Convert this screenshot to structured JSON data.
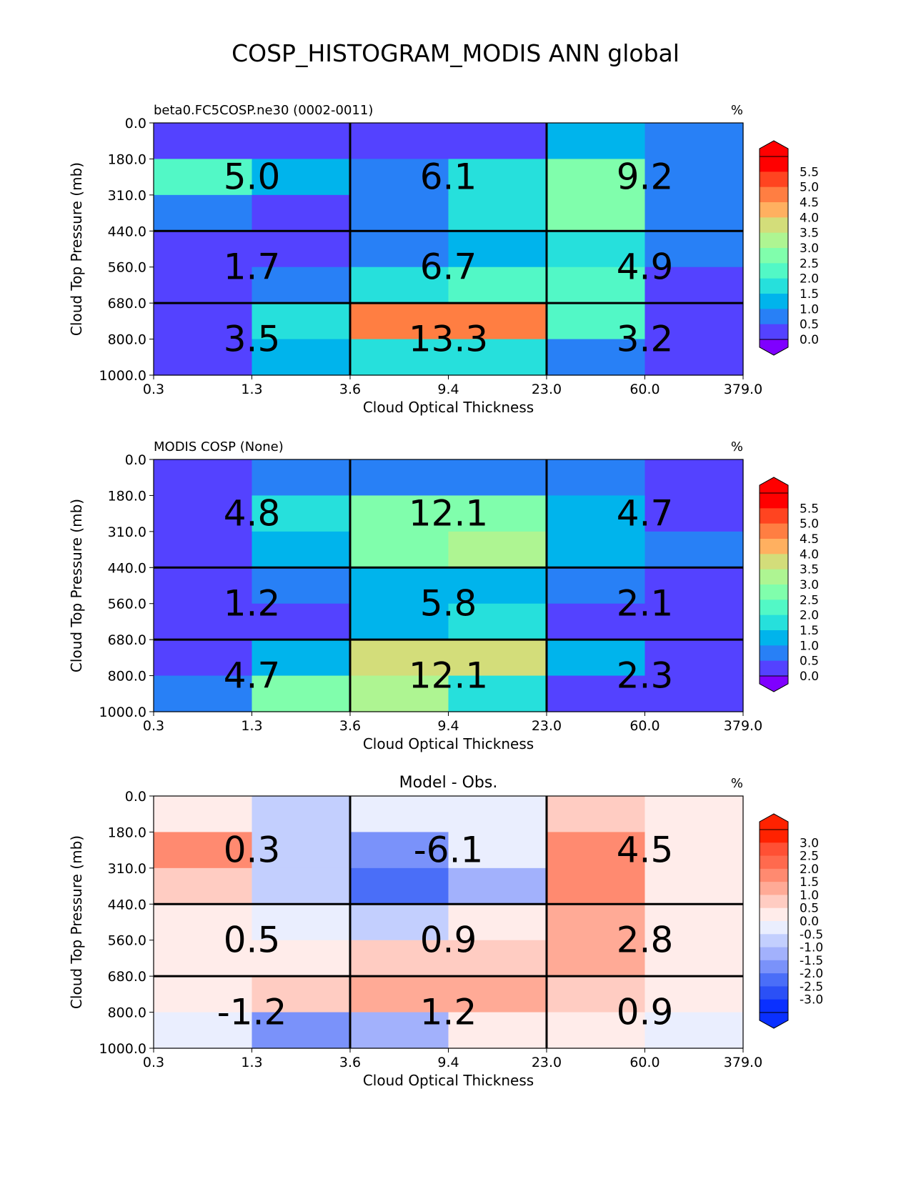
{
  "title": "COSP_HISTOGRAM_MODIS ANN global",
  "chart_data": [
    {
      "type": "heatmap",
      "name": "test",
      "left_title": "beta0.FC5COSP.ne30 (0002-0011)",
      "center_title": "",
      "units": "%",
      "xlabel": "Cloud Optical Thickness",
      "ylabel": "Cloud Top Pressure (mb)",
      "x_ticks": [
        "0.3",
        "1.3",
        "3.6",
        "9.4",
        "23.0",
        "60.0",
        "379.0"
      ],
      "y_ticks": [
        "0.0",
        "180.0",
        "310.0",
        "440.0",
        "560.0",
        "680.0",
        "800.0",
        "1000.0"
      ],
      "rows": [
        [
          0.3,
          0.3,
          0.4,
          0.4,
          1.3,
          0.7
        ],
        [
          2.2,
          1.4,
          0.8,
          1.8,
          2.7,
          0.8
        ],
        [
          0.8,
          0.3,
          0.8,
          1.8,
          2.6,
          0.8
        ],
        [
          0.3,
          0.4,
          0.8,
          1.2,
          1.8,
          0.8
        ],
        [
          0.3,
          0.7,
          1.7,
          2.2,
          2.1,
          0.3
        ],
        [
          0.3,
          1.9,
          4.8,
          4.8,
          2.3,
          0.2
        ],
        [
          0.3,
          1.4,
          1.8,
          1.8,
          0.8,
          0.2
        ]
      ],
      "block_labels": [
        "5.0",
        "6.1",
        "9.2",
        "1.7",
        "6.7",
        "4.9",
        "3.5",
        "13.3",
        "3.2"
      ],
      "colorbar_ticks": [
        "5.5",
        "5.0",
        "4.5",
        "4.0",
        "3.5",
        "3.0",
        "2.5",
        "2.0",
        "1.5",
        "1.0",
        "0.5",
        "0.0"
      ],
      "colorbar_colors": [
        "#ff0000",
        "#ff4420",
        "#ff7e42",
        "#ffb060",
        "#d3dd7a",
        "#aef592",
        "#80feac",
        "#52f8c6",
        "#26e0dc",
        "#00b4ec",
        "#2880f6",
        "#5442ff"
      ],
      "colorbar_min_color": "#7f00ff",
      "colorbar_max_color": "#ff0000"
    },
    {
      "type": "heatmap",
      "name": "reference",
      "left_title": "MODIS COSP (None)",
      "center_title": "",
      "units": "%",
      "xlabel": "Cloud Optical Thickness",
      "ylabel": "Cloud Top Pressure (mb)",
      "x_ticks": [
        "0.3",
        "1.3",
        "3.6",
        "9.4",
        "23.0",
        "60.0",
        "379.0"
      ],
      "y_ticks": [
        "0.0",
        "180.0",
        "310.0",
        "440.0",
        "560.0",
        "680.0",
        "800.0",
        "1000.0"
      ],
      "rows": [
        [
          0.3,
          0.8,
          0.8,
          0.8,
          0.8,
          0.3
        ],
        [
          0.3,
          1.8,
          2.7,
          2.7,
          1.3,
          0.3
        ],
        [
          0.3,
          1.4,
          2.7,
          3.1,
          1.3,
          0.8
        ],
        [
          0.3,
          0.8,
          1.3,
          1.3,
          0.8,
          0.3
        ],
        [
          0.3,
          0.3,
          1.3,
          1.8,
          0.3,
          0.3
        ],
        [
          0.3,
          1.4,
          3.8,
          3.8,
          1.4,
          0.3
        ],
        [
          0.8,
          2.7,
          3.1,
          1.8,
          0.3,
          0.3
        ]
      ],
      "block_labels": [
        "4.8",
        "12.1",
        "4.7",
        "1.2",
        "5.8",
        "2.1",
        "4.7",
        "12.1",
        "2.3"
      ],
      "colorbar_ticks": [
        "5.5",
        "5.0",
        "4.5",
        "4.0",
        "3.5",
        "3.0",
        "2.5",
        "2.0",
        "1.5",
        "1.0",
        "0.5",
        "0.0"
      ],
      "colorbar_colors": [
        "#ff0000",
        "#ff4420",
        "#ff7e42",
        "#ffb060",
        "#d3dd7a",
        "#aef592",
        "#80feac",
        "#52f8c6",
        "#26e0dc",
        "#00b4ec",
        "#2880f6",
        "#5442ff"
      ],
      "colorbar_min_color": "#7f00ff",
      "colorbar_max_color": "#ff0000"
    },
    {
      "type": "heatmap",
      "name": "difference",
      "left_title": "",
      "center_title": "Model - Obs.",
      "units": "%",
      "xlabel": "Cloud Optical Thickness",
      "ylabel": "Cloud Top Pressure (mb)",
      "x_ticks": [
        "0.3",
        "1.3",
        "3.6",
        "9.4",
        "23.0",
        "60.0",
        "379.0"
      ],
      "y_ticks": [
        "0.0",
        "180.0",
        "310.0",
        "440.0",
        "560.0",
        "680.0",
        "800.0",
        "1000.0"
      ],
      "rows": [
        [
          0.1,
          -0.7,
          -0.3,
          -0.3,
          0.7,
          0.1
        ],
        [
          1.8,
          -0.7,
          -1.8,
          -0.3,
          1.8,
          0.1
        ],
        [
          0.7,
          -0.7,
          -2.2,
          -1.2,
          1.8,
          0.1
        ],
        [
          0.1,
          -0.3,
          -0.7,
          0.1,
          1.2,
          0.1
        ],
        [
          0.1,
          0.1,
          0.7,
          0.7,
          1.2,
          0.1
        ],
        [
          0.1,
          0.7,
          1.2,
          1.2,
          0.7,
          0.1
        ],
        [
          -0.3,
          -1.7,
          -1.2,
          0.1,
          0.1,
          -0.3
        ]
      ],
      "block_labels": [
        "0.3",
        "-6.1",
        "4.5",
        "0.5",
        "0.9",
        "2.8",
        "-1.2",
        "1.2",
        "0.9"
      ],
      "colorbar_ticks": [
        "3.0",
        "2.5",
        "2.0",
        "1.5",
        "1.0",
        "0.5",
        "0.0",
        "-0.5",
        "-1.0",
        "-1.5",
        "-2.0",
        "-2.5",
        "-3.0"
      ],
      "colorbar_colors": [
        "#ff2200",
        "#ff5034",
        "#ff6a4e",
        "#ff8a70",
        "#ffaa96",
        "#ffccc2",
        "#ffecea",
        "#eaeefe",
        "#c3cffe",
        "#a2b1fc",
        "#7a92fa",
        "#4a6ef8",
        "#2b50f6",
        "#0a30ff"
      ],
      "colorbar_min_color": "#0a30ff",
      "colorbar_max_color": "#ff2200"
    }
  ]
}
